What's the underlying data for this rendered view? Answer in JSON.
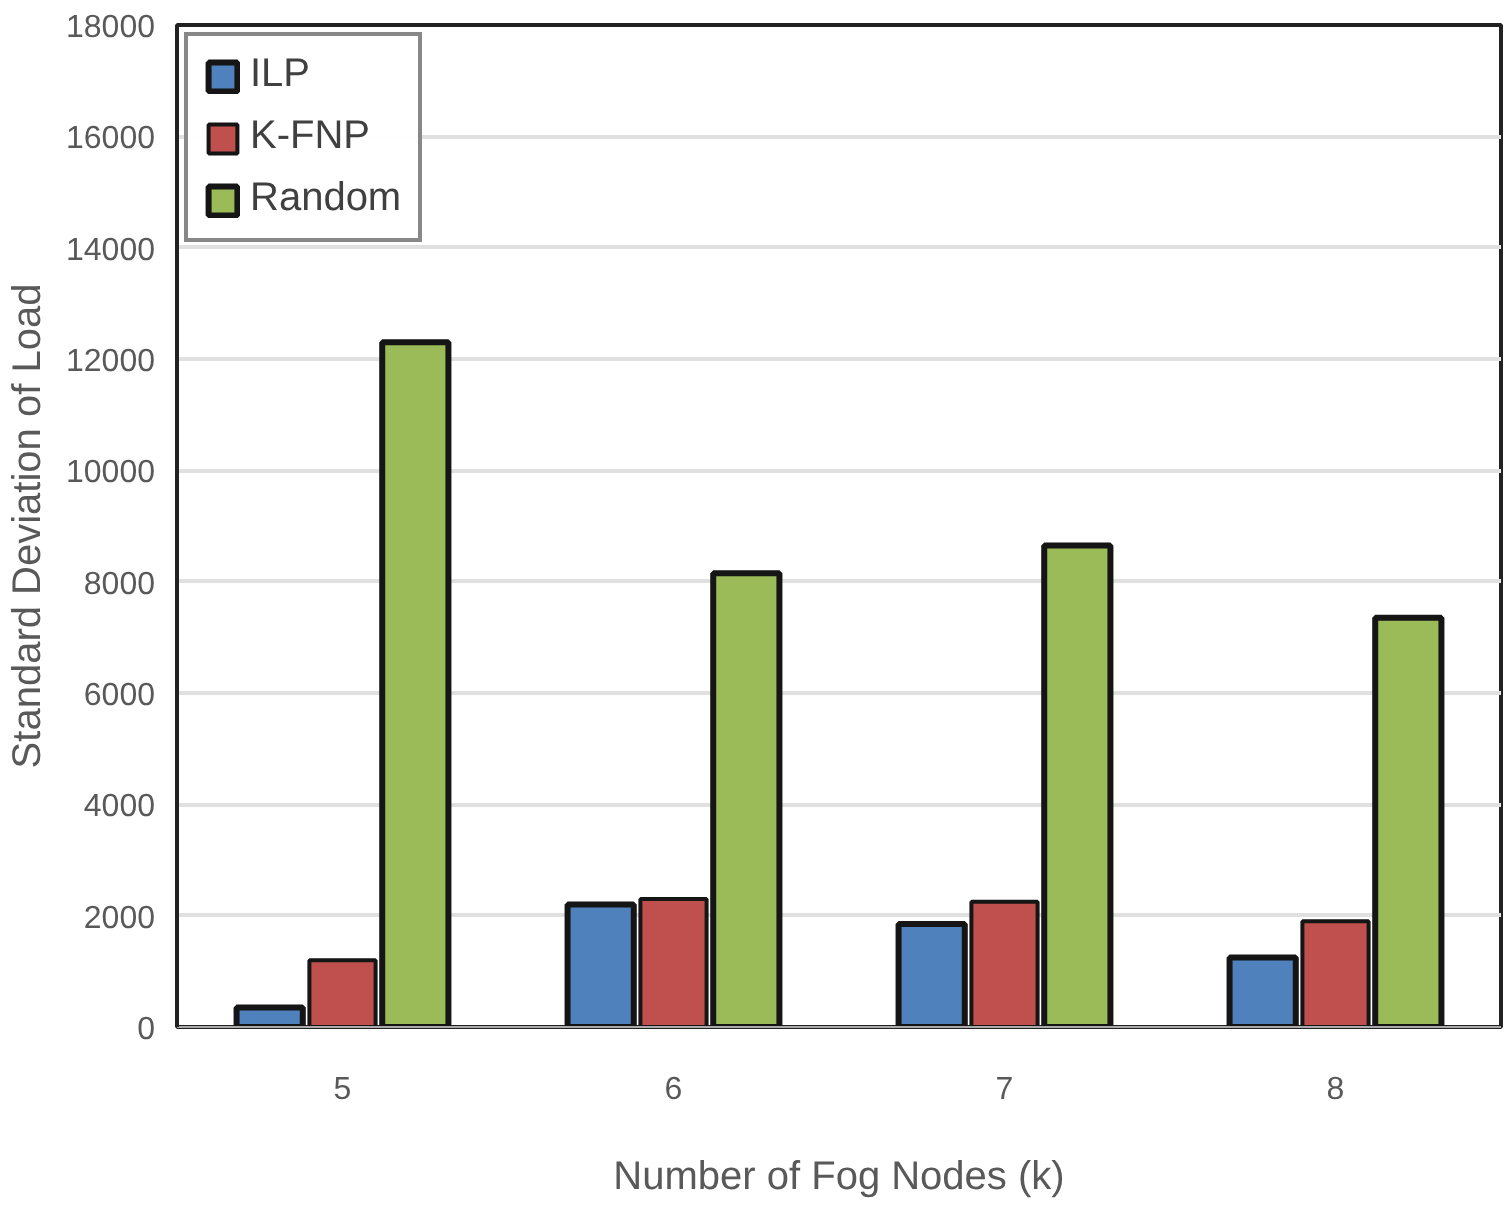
{
  "chart_data": {
    "type": "bar",
    "xlabel": "Number of Fog Nodes (k)",
    "ylabel": "Standard Deviation of Load",
    "categories": [
      "5",
      "6",
      "7",
      "8"
    ],
    "series": [
      {
        "name": "ILP",
        "color": "#4f81bd",
        "values": [
          350,
          2200,
          1850,
          1250
        ]
      },
      {
        "name": "K-FNP",
        "color": "#c0504d",
        "values": [
          1200,
          2300,
          2250,
          1900
        ]
      },
      {
        "name": "Random",
        "color": "#9bbb59",
        "values": [
          12300,
          8150,
          8650,
          7350
        ]
      }
    ],
    "ylim": [
      0,
      18000
    ],
    "yticks": [
      0,
      2000,
      4000,
      6000,
      8000,
      10000,
      12000,
      14000,
      16000,
      18000
    ],
    "grid": "y",
    "legend": "top left"
  }
}
